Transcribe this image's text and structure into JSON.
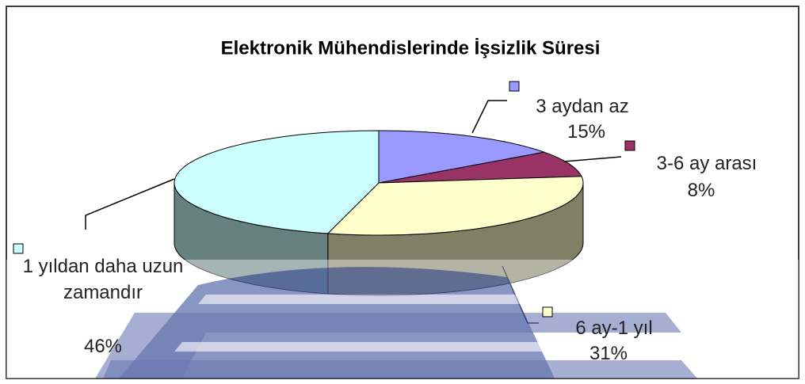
{
  "chart_data": {
    "type": "pie",
    "title": "Elektronik Mühendislerinde İşsizlik Süresi",
    "categories": [
      "3 aydan az",
      "3-6 ay arası",
      "6 ay-1 yıl",
      "1 yıldan daha uzun zamandır"
    ],
    "values": [
      15,
      8,
      31,
      46
    ],
    "value_labels": [
      "15%",
      "8%",
      "31%",
      "46%"
    ],
    "colors": [
      "#9999ff",
      "#993366",
      "#ffffcc",
      "#ccffff"
    ]
  }
}
